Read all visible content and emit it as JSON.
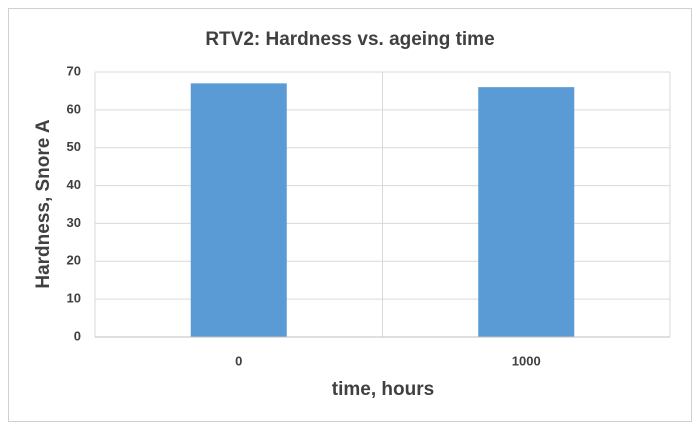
{
  "chart_data": {
    "type": "bar",
    "title": "RTV2: Hardness vs. ageing time",
    "x_label": "time, hours",
    "y_label": "Hardness, Snore A",
    "categories": [
      "0",
      "1000"
    ],
    "values": [
      67,
      66
    ],
    "color": "#5b9bd5",
    "ylim": [
      0,
      70
    ],
    "yticks": [
      0,
      10,
      20,
      30,
      40,
      50,
      60,
      70
    ],
    "grid": true
  }
}
